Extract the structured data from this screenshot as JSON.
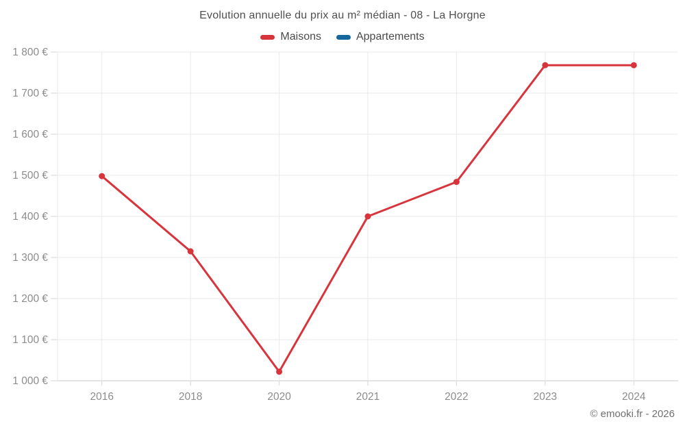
{
  "header": {
    "title": "Evolution annuelle du prix au m² médian - 08 - La Horgne"
  },
  "legend": {
    "items": [
      {
        "label": "Maisons",
        "color": "#d7343c"
      },
      {
        "label": "Appartements",
        "color": "#15689b"
      }
    ]
  },
  "footer": {
    "credit": "© emooki.fr - 2026"
  },
  "chart_data": {
    "type": "line",
    "title": "Evolution annuelle du prix au m² médian - 08 - La Horgne",
    "categories": [
      "2016",
      "2018",
      "2020",
      "2021",
      "2022",
      "2023",
      "2024"
    ],
    "series": [
      {
        "name": "Maisons",
        "color": "#d7343c",
        "values": [
          1498,
          1315,
          1022,
          1400,
          1484,
          1768,
          1768
        ]
      },
      {
        "name": "Appartements",
        "color": "#15689b",
        "values": []
      }
    ],
    "xlabel": "",
    "ylabel": "",
    "ylim": [
      1000,
      1800
    ],
    "ytick_step": 100,
    "ytick_suffix": " €",
    "grid": true,
    "legend_position": "top",
    "colors": {
      "gridline": "#e9e9e9",
      "axis_line": "#c9c9c9",
      "tick": "#d6d6d6",
      "axis_label": "#8c8c8c"
    }
  }
}
